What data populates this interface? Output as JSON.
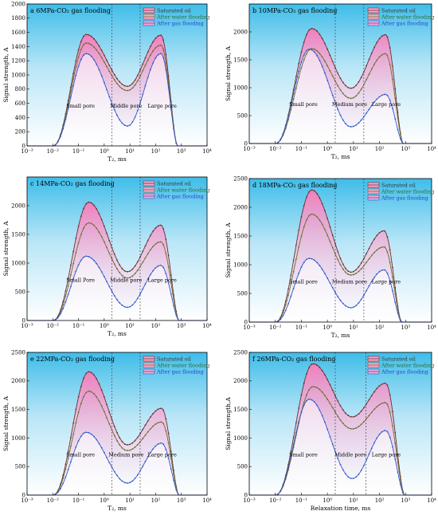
{
  "colors": {
    "saturated": "#6b2f2f",
    "water": "#6b6b2f",
    "gas": "#2f57c8",
    "fill_pink": "#f7a8d2",
    "bg_blue": "#5ec8ee",
    "legend_water_text": "#2f6b2f",
    "legend_gas_text": "#2b43c8"
  },
  "chart_data": [
    {
      "type": "line",
      "title_letter": "a",
      "title_text": "6MPa-CO₂ gas flooding",
      "xlabel": "T₂, ms",
      "ylabel": "Signal strength, A",
      "xscale": "log",
      "xlim": [
        0.001,
        10000
      ],
      "ylim": [
        0,
        2000
      ],
      "yticks": [
        0,
        200,
        400,
        600,
        800,
        1000,
        1200,
        1400,
        1600,
        1800,
        2000
      ],
      "xticks": [
        "10⁻³",
        "10⁻²",
        "10⁻¹",
        "10⁰",
        "10¹",
        "10²",
        "10³",
        "10⁴"
      ],
      "dividers_x": [
        2,
        25
      ],
      "region_labels": [
        "Small pore",
        "Middle pore",
        "Large pore"
      ],
      "legend": [
        "Saturated oil",
        "After water flooding",
        "After gas flooding"
      ],
      "legend_position": "top-right",
      "series": [
        {
          "name": "Saturated oil",
          "values": [
            [
              0.01,
              0
            ],
            [
              0.2,
              1570
            ],
            [
              8,
              840
            ],
            [
              160,
              1560
            ],
            [
              700,
              0
            ]
          ]
        },
        {
          "name": "After water flooding",
          "values": [
            [
              0.01,
              0
            ],
            [
              0.2,
              1450
            ],
            [
              8,
              780
            ],
            [
              160,
              1420
            ],
            [
              700,
              0
            ]
          ]
        },
        {
          "name": "After gas flooding",
          "values": [
            [
              0.01,
              0
            ],
            [
              0.2,
              1300
            ],
            [
              8,
              280
            ],
            [
              160,
              1300
            ],
            [
              700,
              0
            ]
          ]
        }
      ]
    },
    {
      "type": "line",
      "title_letter": "b",
      "title_text": "10MPa-CO₂ gas flooding",
      "xlabel": "T₂, ms",
      "ylabel": "Signal strength, A",
      "xscale": "log",
      "xlim": [
        0.001,
        10000
      ],
      "ylim": [
        0,
        2500
      ],
      "yticks": [
        0,
        500,
        1000,
        1500,
        2000
      ],
      "xticks": [
        "10⁻³",
        "10⁻²",
        "10⁻¹",
        "10⁰",
        "10¹",
        "10²",
        "10³",
        "10⁴"
      ],
      "dividers_x": [
        2,
        25
      ],
      "region_labels": [
        "Small pore",
        "Medium pore",
        "Large pore"
      ],
      "legend": [
        "Saturated oil",
        "After water flooding",
        "After gas flooding"
      ],
      "legend_position": "top-right",
      "series": [
        {
          "name": "Saturated oil",
          "values": [
            [
              0.01,
              0
            ],
            [
              0.25,
              2060
            ],
            [
              8,
              990
            ],
            [
              170,
              1950
            ],
            [
              800,
              0
            ]
          ]
        },
        {
          "name": "After water flooding",
          "values": [
            [
              0.01,
              0
            ],
            [
              0.25,
              1700
            ],
            [
              8,
              810
            ],
            [
              170,
              1610
            ],
            [
              800,
              0
            ]
          ]
        },
        {
          "name": "After gas flooding",
          "values": [
            [
              0.01,
              0
            ],
            [
              0.2,
              1690
            ],
            [
              8,
              300
            ],
            [
              170,
              880
            ],
            [
              800,
              0
            ]
          ]
        }
      ]
    },
    {
      "type": "line",
      "title_letter": "c",
      "title_text": "14MPa-CO₂ gas flooding",
      "xlabel": "T₂, ms",
      "ylabel": "Signal strength, A",
      "xscale": "log",
      "xlim": [
        0.001,
        10000
      ],
      "ylim": [
        0,
        2500
      ],
      "yticks": [
        0,
        500,
        1000,
        1500,
        2000
      ],
      "xticks": [
        "10⁻³",
        "10⁻²",
        "10⁻¹",
        "10⁰",
        "10¹",
        "10²",
        "10³",
        "10⁴"
      ],
      "dividers_x": [
        2,
        25
      ],
      "region_labels": [
        "Small Pore",
        "Middle pore",
        "Large pore"
      ],
      "legend": [
        "Saturated oil",
        "After water flooding",
        "After gas flooding"
      ],
      "legend_position": "top-right",
      "series": [
        {
          "name": "Saturated oil",
          "values": [
            [
              0.01,
              0
            ],
            [
              0.25,
              2060
            ],
            [
              8,
              850
            ],
            [
              160,
              1660
            ],
            [
              800,
              0
            ]
          ]
        },
        {
          "name": "After water flooding",
          "values": [
            [
              0.01,
              0
            ],
            [
              0.25,
              1700
            ],
            [
              8,
              740
            ],
            [
              160,
              1370
            ],
            [
              800,
              0
            ]
          ]
        },
        {
          "name": "After gas flooding",
          "values": [
            [
              0.01,
              0
            ],
            [
              0.2,
              1120
            ],
            [
              8,
              230
            ],
            [
              160,
              960
            ],
            [
              800,
              0
            ]
          ]
        }
      ]
    },
    {
      "type": "line",
      "title_letter": "d",
      "title_text": "18MPa-CO₂ gas flooding",
      "xlabel": "T₂, ms",
      "ylabel": "Signal strength, A",
      "xscale": "log",
      "xlim": [
        0.001,
        10000
      ],
      "ylim": [
        0,
        2500
      ],
      "yticks": [
        0,
        500,
        1000,
        1500,
        2000,
        2500
      ],
      "xticks": [
        "10⁻³",
        "10⁻²",
        "10⁻¹",
        "10⁰",
        "10¹",
        "10²",
        "10³",
        "10⁴"
      ],
      "dividers_x": [
        2,
        25
      ],
      "region_labels": [
        "Small pore",
        "Medium pore",
        "Large pore"
      ],
      "legend": [
        "Saturated oil",
        "After water flooding",
        "After gas flooding"
      ],
      "legend_position": "top-right",
      "series": [
        {
          "name": "Saturated oil",
          "values": [
            [
              0.01,
              0
            ],
            [
              0.25,
              2300
            ],
            [
              8,
              870
            ],
            [
              150,
              1590
            ],
            [
              700,
              0
            ]
          ]
        },
        {
          "name": "After water flooding",
          "values": [
            [
              0.01,
              0
            ],
            [
              0.25,
              1880
            ],
            [
              8,
              820
            ],
            [
              150,
              1310
            ],
            [
              700,
              0
            ]
          ]
        },
        {
          "name": "After gas flooding",
          "values": [
            [
              0.01,
              0
            ],
            [
              0.2,
              1110
            ],
            [
              8,
              250
            ],
            [
              150,
              910
            ],
            [
              700,
              0
            ]
          ]
        }
      ]
    },
    {
      "type": "line",
      "title_letter": "e",
      "title_text": "22MPa-CO₂ gas flooding",
      "xlabel": "T₂, ms",
      "ylabel": "Signal strength, A",
      "xscale": "log",
      "xlim": [
        0.001,
        10000
      ],
      "ylim": [
        0,
        2500
      ],
      "yticks": [
        0,
        500,
        1000,
        1500,
        2000,
        2500
      ],
      "xticks": [
        "10⁻³",
        "10⁻²",
        "10⁻¹",
        "10⁰",
        "10¹",
        "10²",
        "10³",
        "10⁴"
      ],
      "dividers_x": [
        2,
        25
      ],
      "region_labels": [
        "Small pore",
        "Medium pore",
        "Large pore"
      ],
      "legend": [
        "Saturated oil",
        "After water flooding",
        "After gas flooding"
      ],
      "legend_position": "top-right",
      "series": [
        {
          "name": "Saturated oil",
          "values": [
            [
              0.01,
              0
            ],
            [
              0.25,
              2160
            ],
            [
              8,
              880
            ],
            [
              170,
              1520
            ],
            [
              800,
              0
            ]
          ]
        },
        {
          "name": "After water flooding",
          "values": [
            [
              0.01,
              0
            ],
            [
              0.25,
              1820
            ],
            [
              8,
              780
            ],
            [
              170,
              1280
            ],
            [
              800,
              0
            ]
          ]
        },
        {
          "name": "After gas flooding",
          "values": [
            [
              0.01,
              0
            ],
            [
              0.2,
              1100
            ],
            [
              8,
              210
            ],
            [
              170,
              910
            ],
            [
              800,
              0
            ]
          ]
        }
      ]
    },
    {
      "type": "line",
      "title_letter": "f",
      "title_text": "26MPa-CO₂ gas flooding",
      "xlabel": "Relaxation time, ms",
      "ylabel": "Signal strength,A",
      "xscale": "log",
      "xlim": [
        0.001,
        10000
      ],
      "ylim": [
        0,
        2500
      ],
      "yticks": [
        0,
        500,
        1000,
        1500,
        2000,
        2500
      ],
      "xticks": [
        "10⁻³",
        "10⁻²",
        "10⁻¹",
        "10⁰",
        "10¹",
        "10²",
        "10³",
        "10⁴"
      ],
      "dividers_x": [
        2,
        30
      ],
      "region_labels": [
        "Small pore",
        "Middle pore",
        "Large pore"
      ],
      "legend": [
        "Saturated oil",
        "After water flooding",
        "After gas flooding"
      ],
      "legend_position": "top-right",
      "series": [
        {
          "name": "Saturated oil",
          "values": [
            [
              0.01,
              0
            ],
            [
              0.28,
              2300
            ],
            [
              9,
              1370
            ],
            [
              170,
              1960
            ],
            [
              900,
              0
            ]
          ]
        },
        {
          "name": "After water flooding",
          "values": [
            [
              0.01,
              0
            ],
            [
              0.28,
              1900
            ],
            [
              9,
              1160
            ],
            [
              170,
              1620
            ],
            [
              900,
              0
            ]
          ]
        },
        {
          "name": "After gas flooding",
          "values": [
            [
              0.01,
              0
            ],
            [
              0.2,
              1680
            ],
            [
              9,
              290
            ],
            [
              170,
              1130
            ],
            [
              900,
              0
            ]
          ]
        }
      ]
    }
  ]
}
